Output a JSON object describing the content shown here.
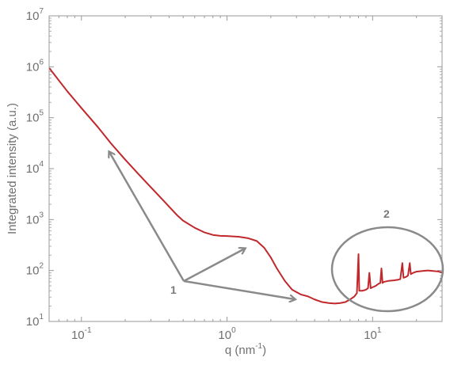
{
  "chart_data": {
    "type": "line",
    "xlabel": "q (nm",
    "xlabel_exp": "-1",
    "xlabel_end": ")",
    "ylabel": "Integrated intensity (a.u.)",
    "x_scale": "log",
    "y_scale": "log",
    "xlim": [
      0.06,
      30
    ],
    "ylim": [
      10,
      10000000
    ],
    "x_ticks": [
      {
        "value": 0.1,
        "base": "10",
        "exp": "-1"
      },
      {
        "value": 1,
        "base": "10",
        "exp": "0"
      },
      {
        "value": 10,
        "base": "10",
        "exp": "1"
      }
    ],
    "y_ticks": [
      {
        "value": 10,
        "base": "10",
        "exp": "1"
      },
      {
        "value": 100,
        "base": "10",
        "exp": "2"
      },
      {
        "value": 1000,
        "base": "10",
        "exp": "3"
      },
      {
        "value": 10000,
        "base": "10",
        "exp": "4"
      },
      {
        "value": 100000,
        "base": "10",
        "exp": "5"
      },
      {
        "value": 1000000,
        "base": "10",
        "exp": "6"
      },
      {
        "value": 10000000,
        "base": "10",
        "exp": "7"
      }
    ],
    "grid": false,
    "series": [
      {
        "color": "#c0282b",
        "points": [
          [
            0.06,
            950000
          ],
          [
            0.08,
            330000
          ],
          [
            0.1,
            155000
          ],
          [
            0.13,
            65000
          ],
          [
            0.16,
            31000
          ],
          [
            0.2,
            15000
          ],
          [
            0.25,
            7500
          ],
          [
            0.3,
            4300
          ],
          [
            0.35,
            2700
          ],
          [
            0.4,
            1800
          ],
          [
            0.45,
            1250
          ],
          [
            0.5,
            950
          ],
          [
            0.6,
            690
          ],
          [
            0.7,
            560
          ],
          [
            0.8,
            500
          ],
          [
            0.9,
            480
          ],
          [
            1.0,
            475
          ],
          [
            1.2,
            460
          ],
          [
            1.4,
            430
          ],
          [
            1.6,
            380
          ],
          [
            1.8,
            280
          ],
          [
            2.0,
            180
          ],
          [
            2.2,
            110
          ],
          [
            2.5,
            62
          ],
          [
            2.8,
            42
          ],
          [
            3.2,
            34
          ],
          [
            3.6,
            31
          ],
          [
            4.0,
            27
          ],
          [
            4.5,
            24
          ],
          [
            5.0,
            23
          ],
          [
            5.5,
            22.5
          ],
          [
            6.0,
            23
          ],
          [
            6.5,
            24
          ],
          [
            7.0,
            27
          ],
          [
            7.5,
            31
          ],
          [
            7.8,
            36
          ],
          [
            8.0,
            210
          ],
          [
            8.1,
            40
          ],
          [
            8.5,
            40
          ],
          [
            9.0,
            42
          ],
          [
            9.3,
            45
          ],
          [
            9.5,
            90
          ],
          [
            9.7,
            45
          ],
          [
            10.0,
            47
          ],
          [
            10.5,
            50
          ],
          [
            11.0,
            55
          ],
          [
            11.3,
            57
          ],
          [
            11.5,
            110
          ],
          [
            11.7,
            57
          ],
          [
            12.0,
            60
          ],
          [
            13.0,
            63
          ],
          [
            14.0,
            64
          ],
          [
            15.0,
            66
          ],
          [
            15.5,
            68
          ],
          [
            16.0,
            140
          ],
          [
            16.3,
            72
          ],
          [
            17.0,
            75
          ],
          [
            17.5,
            80
          ],
          [
            18.0,
            140
          ],
          [
            18.3,
            85
          ],
          [
            19.0,
            90
          ],
          [
            20.0,
            95
          ],
          [
            22.0,
            98
          ],
          [
            24.0,
            100
          ],
          [
            26.0,
            98
          ],
          [
            28.0,
            96
          ],
          [
            30.0,
            92
          ]
        ]
      }
    ],
    "annotations": [
      {
        "label": "1",
        "arrows_to": [
          [
            0.15,
            23000
          ],
          [
            1.5,
            250
          ],
          [
            3.2,
            25
          ]
        ]
      },
      {
        "label": "2",
        "region": "ellipse around peaks near q = 7–30"
      }
    ],
    "colors": {
      "line": "#c0282b",
      "axis": "#9a9a9a",
      "annotation": "#8a8a8a"
    }
  }
}
